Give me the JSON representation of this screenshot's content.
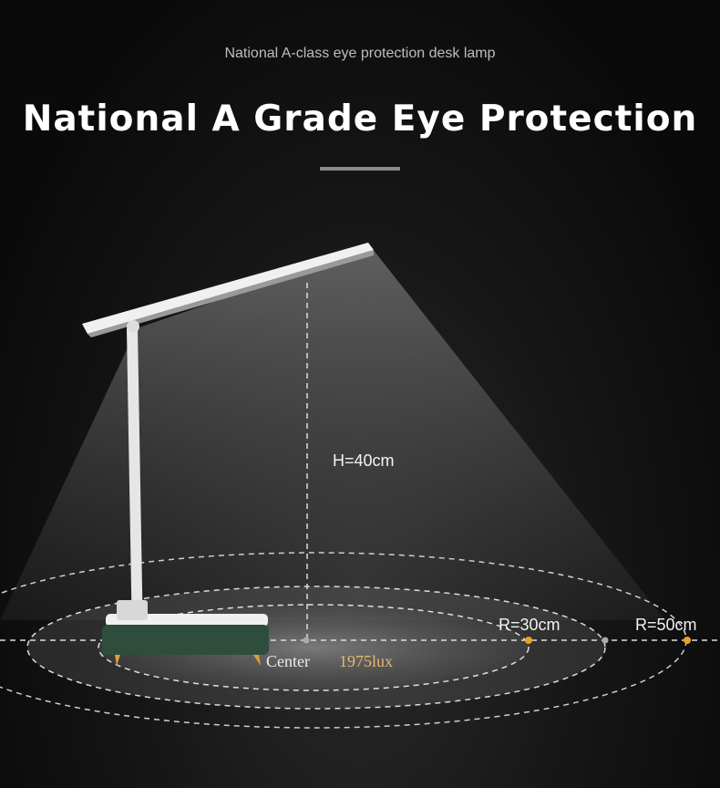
{
  "subtitle": "National A-class eye protection desk lamp",
  "title": "National A Grade Eye Protection",
  "height_label": "H=40cm",
  "radius_labels": [
    "R=30cm",
    "R=50cm"
  ],
  "center_label": "Center",
  "center_lux": "1975lux",
  "colors": {
    "accent": "#f0a020",
    "lux_text": "#e8b870",
    "lamp_base": "#2e4d3d",
    "lamp_body": "#e8e8e8"
  }
}
